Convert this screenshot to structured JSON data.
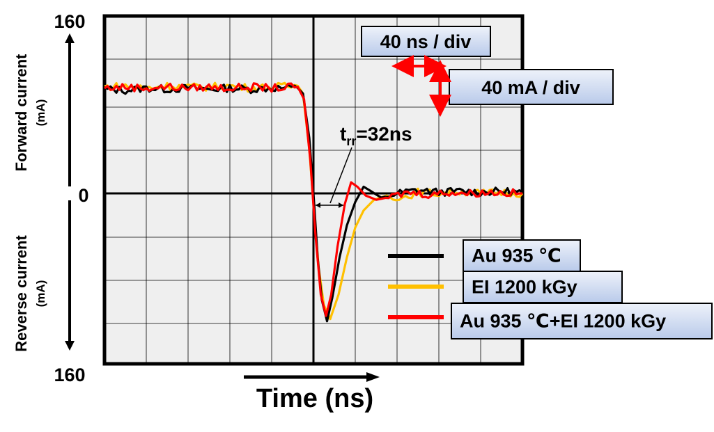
{
  "chart_data": {
    "type": "line",
    "title": "",
    "xlabel": "Time (ns)",
    "ylabel_top": "Forward current",
    "ylabel_top_unit": "(mA)",
    "ylabel_bottom": "Reverse current",
    "ylabel_bottom_unit": "(mA)",
    "y_tick_top": "160",
    "y_tick_zero": "0",
    "y_tick_bottom": "160",
    "xlim": [
      0,
      400
    ],
    "ylim": [
      -160,
      160
    ],
    "grid": true,
    "x_scale_label": "40 ns / div",
    "y_scale_label": "40 mA / div",
    "annotation_trr": "t",
    "annotation_trr_sub": "rr",
    "annotation_trr_value": "=32ns",
    "legend_position": "bottom-right",
    "series": [
      {
        "name": "Au 935 ℃",
        "color": "#000000",
        "points": [
          [
            0,
            94
          ],
          [
            20,
            93
          ],
          [
            40,
            95
          ],
          [
            60,
            94
          ],
          [
            80,
            95
          ],
          [
            100,
            94
          ],
          [
            120,
            95
          ],
          [
            140,
            94
          ],
          [
            160,
            95
          ],
          [
            185,
            95
          ],
          [
            190,
            90
          ],
          [
            196,
            50
          ],
          [
            200,
            0
          ],
          [
            204,
            -60
          ],
          [
            208,
            -100
          ],
          [
            213,
            -120
          ],
          [
            218,
            -98
          ],
          [
            225,
            -60
          ],
          [
            232,
            -30
          ],
          [
            240,
            -8
          ],
          [
            248,
            6
          ],
          [
            255,
            2
          ],
          [
            265,
            -4
          ],
          [
            280,
            0
          ],
          [
            300,
            3
          ],
          [
            320,
            1
          ],
          [
            340,
            2
          ],
          [
            360,
            1
          ],
          [
            380,
            2
          ],
          [
            400,
            1
          ]
        ]
      },
      {
        "name": "EI 1200 kGy",
        "color": "#FFC000",
        "points": [
          [
            0,
            96
          ],
          [
            20,
            97
          ],
          [
            40,
            95
          ],
          [
            60,
            97
          ],
          [
            80,
            96
          ],
          [
            100,
            96
          ],
          [
            120,
            97
          ],
          [
            140,
            95
          ],
          [
            160,
            96
          ],
          [
            185,
            97
          ],
          [
            190,
            90
          ],
          [
            196,
            40
          ],
          [
            200,
            -10
          ],
          [
            205,
            -70
          ],
          [
            210,
            -105
          ],
          [
            216,
            -118
          ],
          [
            224,
            -95
          ],
          [
            232,
            -60
          ],
          [
            240,
            -32
          ],
          [
            248,
            -16
          ],
          [
            258,
            -6
          ],
          [
            270,
            -2
          ],
          [
            285,
            -4
          ],
          [
            300,
            1
          ],
          [
            320,
            0
          ],
          [
            340,
            2
          ],
          [
            360,
            0
          ],
          [
            380,
            1
          ],
          [
            400,
            0
          ]
        ]
      },
      {
        "name": "Au 935 ℃+EI 1200 kGy",
        "color": "#FF0000",
        "points": [
          [
            0,
            95
          ],
          [
            20,
            96
          ],
          [
            40,
            95
          ],
          [
            60,
            96
          ],
          [
            80,
            95
          ],
          [
            100,
            96
          ],
          [
            120,
            95
          ],
          [
            140,
            96
          ],
          [
            160,
            95
          ],
          [
            185,
            96
          ],
          [
            191,
            85
          ],
          [
            197,
            30
          ],
          [
            202,
            -40
          ],
          [
            207,
            -95
          ],
          [
            212,
            -115
          ],
          [
            217,
            -95
          ],
          [
            223,
            -50
          ],
          [
            230,
            -10
          ],
          [
            236,
            10
          ],
          [
            242,
            6
          ],
          [
            250,
            -2
          ],
          [
            260,
            -6
          ],
          [
            275,
            -3
          ],
          [
            290,
            1
          ],
          [
            310,
            -1
          ],
          [
            330,
            1
          ],
          [
            350,
            0
          ],
          [
            370,
            1
          ],
          [
            400,
            0
          ]
        ]
      }
    ]
  }
}
